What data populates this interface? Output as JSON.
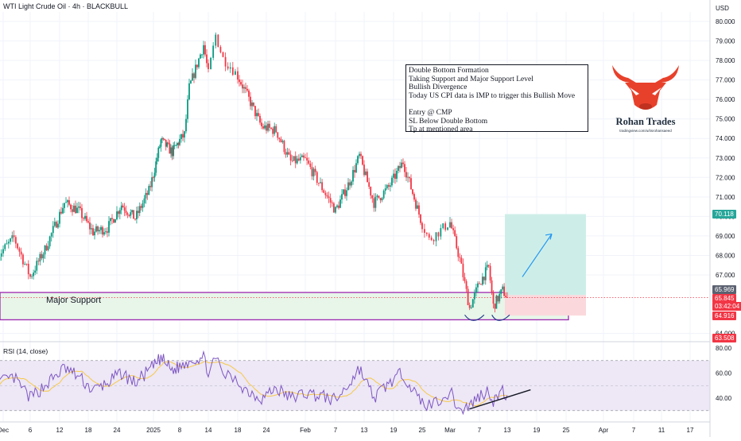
{
  "header": {
    "symbol_title": "WTI Light Crude Oil · 4h · BLACKBULL",
    "currency": "USD",
    "rsi_title": "RSI (14, close)"
  },
  "annotation": {
    "lines": [
      "Double Bottom Formation",
      "Taking Support and Major Support Level",
      "Bullish Divergence",
      "Today US CPI data is IMP to trigger this Bullish Move",
      "",
      "Entry @ CMP",
      "SL Below Double Bottom",
      "Tp at mentioned area"
    ],
    "support_label": "Major Support"
  },
  "brand": {
    "name": "Rohan Trades",
    "url": "tradingview.com/u/itsrohansaeed",
    "logo_icon": "bull-head-icon",
    "logo_color": "#e8412b"
  },
  "price_tags": [
    {
      "id": "target",
      "value": "70.118",
      "color": "#26a69a"
    },
    {
      "id": "last-close",
      "value": "65.969",
      "color": "#5b6170"
    },
    {
      "id": "last-price",
      "value": "65.845",
      "color": "#f23645"
    },
    {
      "id": "countdown",
      "value": "03:42:04",
      "color": "#f23645"
    },
    {
      "id": "stop",
      "value": "64.916",
      "color": "#f23645"
    },
    {
      "id": "low",
      "value": "63.508",
      "color": "#f23645"
    }
  ],
  "colors": {
    "up": "#089981",
    "down": "#f23645",
    "support_border": "#9c27b0",
    "support_fill": "#e8f5e9",
    "target_fill": "#cdeee8",
    "stop_fill": "#fbd8dc",
    "rsi_line": "#7e57c2",
    "rsi_ma": "#f7c948",
    "rsi_band": "#ede7f6",
    "divergence_line": "#131722",
    "arrow": "#2196f3"
  },
  "chart_data": [
    {
      "type": "candlestick",
      "title": "WTI Light Crude Oil · 4h · BLACKBULL",
      "x_tick_labels": [
        "Dec",
        "6",
        "12",
        "18",
        "24",
        "2025",
        "8",
        "14",
        "18",
        "24",
        "Feb",
        "7",
        "13",
        "19",
        "25",
        "Mar",
        "7",
        "13",
        "19",
        "25",
        "Apr",
        "7",
        "11",
        "17"
      ],
      "y_tick_labels": [
        "80.000",
        "79.000",
        "78.000",
        "77.000",
        "76.000",
        "75.000",
        "74.000",
        "73.000",
        "72.000",
        "71.000",
        "70.000",
        "69.000",
        "68.000",
        "67.000",
        "64.000"
      ],
      "ylim": [
        63.3,
        80.4
      ],
      "grid": true,
      "price_path": [
        {
          "date": "Nov 30",
          "price": 68.0
        },
        {
          "date": "Dec 3",
          "price": 68.9
        },
        {
          "date": "Dec 6",
          "price": 66.9
        },
        {
          "date": "Dec 9",
          "price": 68.3
        },
        {
          "date": "Dec 13",
          "price": 70.7
        },
        {
          "date": "Dec 16",
          "price": 70.3
        },
        {
          "date": "Dec 19",
          "price": 69.2
        },
        {
          "date": "Dec 22",
          "price": 69.4
        },
        {
          "date": "Dec 25",
          "price": 70.6
        },
        {
          "date": "Dec 28",
          "price": 69.9
        },
        {
          "date": "Dec 31",
          "price": 71.3
        },
        {
          "date": "Jan 3",
          "price": 73.9
        },
        {
          "date": "Jan 6",
          "price": 73.3
        },
        {
          "date": "Jan 9",
          "price": 74.2
        },
        {
          "date": "Jan 10",
          "price": 76.6
        },
        {
          "date": "Jan 13",
          "price": 78.8
        },
        {
          "date": "Jan 14",
          "price": 77.3
        },
        {
          "date": "Jan 15",
          "price": 79.3
        },
        {
          "date": "Jan 16",
          "price": 78.1
        },
        {
          "date": "Jan 17",
          "price": 77.7
        },
        {
          "date": "Jan 20",
          "price": 76.2
        },
        {
          "date": "Jan 23",
          "price": 74.6
        },
        {
          "date": "Jan 26",
          "price": 74.4
        },
        {
          "date": "Jan 29",
          "price": 72.8
        },
        {
          "date": "Feb 1",
          "price": 72.9
        },
        {
          "date": "Feb 4",
          "price": 71.6
        },
        {
          "date": "Feb 7",
          "price": 70.3
        },
        {
          "date": "Feb 10",
          "price": 71.8
        },
        {
          "date": "Feb 12",
          "price": 73.1
        },
        {
          "date": "Feb 15",
          "price": 70.7
        },
        {
          "date": "Feb 18",
          "price": 71.5
        },
        {
          "date": "Feb 21",
          "price": 72.8
        },
        {
          "date": "Feb 24",
          "price": 70.4
        },
        {
          "date": "Feb 26",
          "price": 68.8
        },
        {
          "date": "Mar 1",
          "price": 69.7
        },
        {
          "date": "Mar 3",
          "price": 67.8
        },
        {
          "date": "Mar 5",
          "price": 65.3
        },
        {
          "date": "Mar 7",
          "price": 66.6
        },
        {
          "date": "Mar 9",
          "price": 67.4
        },
        {
          "date": "Mar 10",
          "price": 65.4
        },
        {
          "date": "Mar 12",
          "price": 66.2
        },
        {
          "date": "Mar 13",
          "price": 65.85
        }
      ],
      "major_support_zone": {
        "low": 64.7,
        "high": 66.1,
        "label": "Major Support"
      },
      "trade_setup": {
        "entry": 65.969,
        "target": 70.118,
        "stop": 64.916
      }
    },
    {
      "type": "line",
      "title": "RSI (14, close)",
      "y_tick_labels": [
        "80.00",
        "60.00",
        "40.00"
      ],
      "ylim": [
        27,
        82
      ],
      "band": [
        30,
        70
      ],
      "midline": 50,
      "rsi_path": [
        {
          "date": "Nov 30",
          "rsi": 52
        },
        {
          "date": "Dec 3",
          "rsi": 56
        },
        {
          "date": "Dec 6",
          "rsi": 40
        },
        {
          "date": "Dec 9",
          "rsi": 50
        },
        {
          "date": "Dec 13",
          "rsi": 64
        },
        {
          "date": "Dec 16",
          "rsi": 57
        },
        {
          "date": "Dec 19",
          "rsi": 46
        },
        {
          "date": "Dec 22",
          "rsi": 52
        },
        {
          "date": "Dec 25",
          "rsi": 60
        },
        {
          "date": "Dec 28",
          "rsi": 52
        },
        {
          "date": "Dec 31",
          "rsi": 62
        },
        {
          "date": "Jan 3",
          "rsi": 72
        },
        {
          "date": "Jan 6",
          "rsi": 62
        },
        {
          "date": "Jan 9",
          "rsi": 67
        },
        {
          "date": "Jan 10",
          "rsi": 71
        },
        {
          "date": "Jan 13",
          "rsi": 72
        },
        {
          "date": "Jan 14",
          "rsi": 62
        },
        {
          "date": "Jan 15",
          "rsi": 70
        },
        {
          "date": "Jan 16",
          "rsi": 60
        },
        {
          "date": "Jan 17",
          "rsi": 56
        },
        {
          "date": "Jan 20",
          "rsi": 46
        },
        {
          "date": "Jan 23",
          "rsi": 40
        },
        {
          "date": "Jan 26",
          "rsi": 48
        },
        {
          "date": "Jan 29",
          "rsi": 40
        },
        {
          "date": "Feb 1",
          "rsi": 44
        },
        {
          "date": "Feb 4",
          "rsi": 42
        },
        {
          "date": "Feb 7",
          "rsi": 38
        },
        {
          "date": "Feb 10",
          "rsi": 52
        },
        {
          "date": "Feb 12",
          "rsi": 64
        },
        {
          "date": "Feb 15",
          "rsi": 40
        },
        {
          "date": "Feb 18",
          "rsi": 52
        },
        {
          "date": "Feb 21",
          "rsi": 60
        },
        {
          "date": "Feb 24",
          "rsi": 40
        },
        {
          "date": "Feb 26",
          "rsi": 34
        },
        {
          "date": "Mar 1",
          "rsi": 45
        },
        {
          "date": "Mar 3",
          "rsi": 30
        },
        {
          "date": "Mar 5",
          "rsi": 34
        },
        {
          "date": "Mar 7",
          "rsi": 42
        },
        {
          "date": "Mar 9",
          "rsi": 46
        },
        {
          "date": "Mar 10",
          "rsi": 38
        },
        {
          "date": "Mar 12",
          "rsi": 45
        },
        {
          "date": "Mar 13",
          "rsi": 42
        }
      ],
      "divergence_line": [
        {
          "date": "Mar 3",
          "rsi": 30
        },
        {
          "date": "Mar 15",
          "rsi": 46
        }
      ]
    }
  ]
}
